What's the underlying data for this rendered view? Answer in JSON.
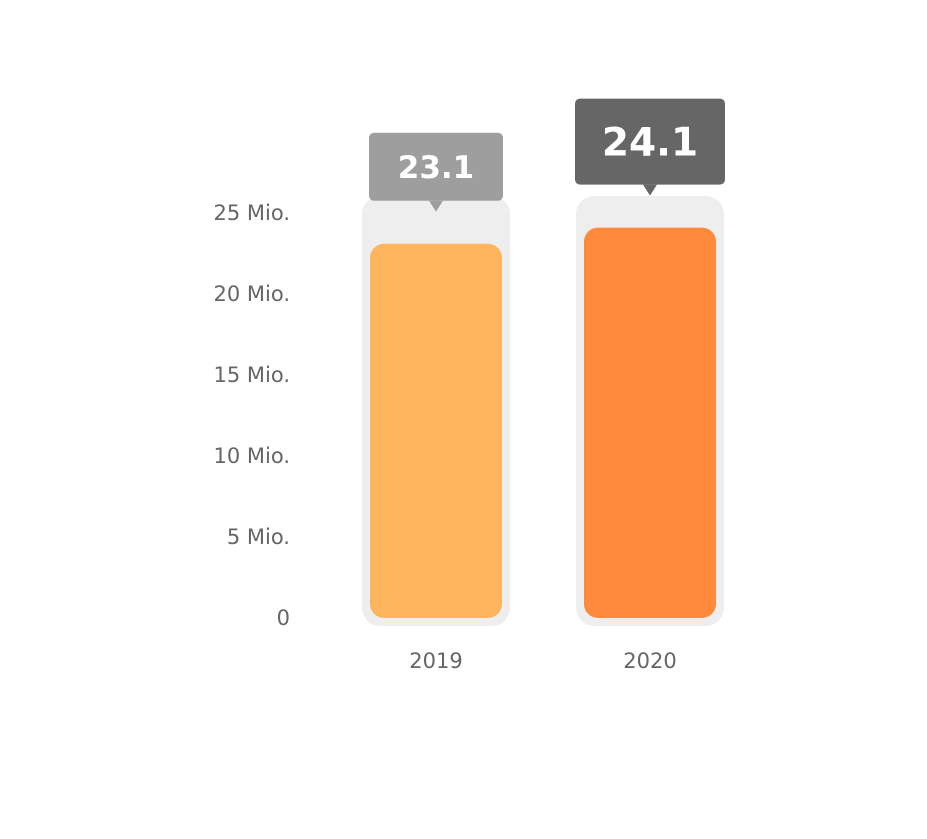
{
  "chart_data": {
    "type": "bar",
    "categories": [
      "2019",
      "2020"
    ],
    "values": [
      23.1,
      24.1
    ],
    "data_labels": [
      "23.1",
      "24.1"
    ],
    "ylim": [
      0,
      27
    ],
    "yticks": [
      0,
      5,
      10,
      15,
      20,
      25
    ],
    "ytick_labels": [
      "0",
      "5 Mio.",
      "10 Mio.",
      "15 Mio.",
      "20 Mio.",
      "25 Mio."
    ],
    "bar_colors": [
      "#FFB55E",
      "#FF8A3D"
    ],
    "label_colors": [
      "#9E9E9E",
      "#666666"
    ],
    "track_color": "#EEEEEE",
    "text_color": "#666666",
    "grid": false,
    "legend": "none"
  }
}
